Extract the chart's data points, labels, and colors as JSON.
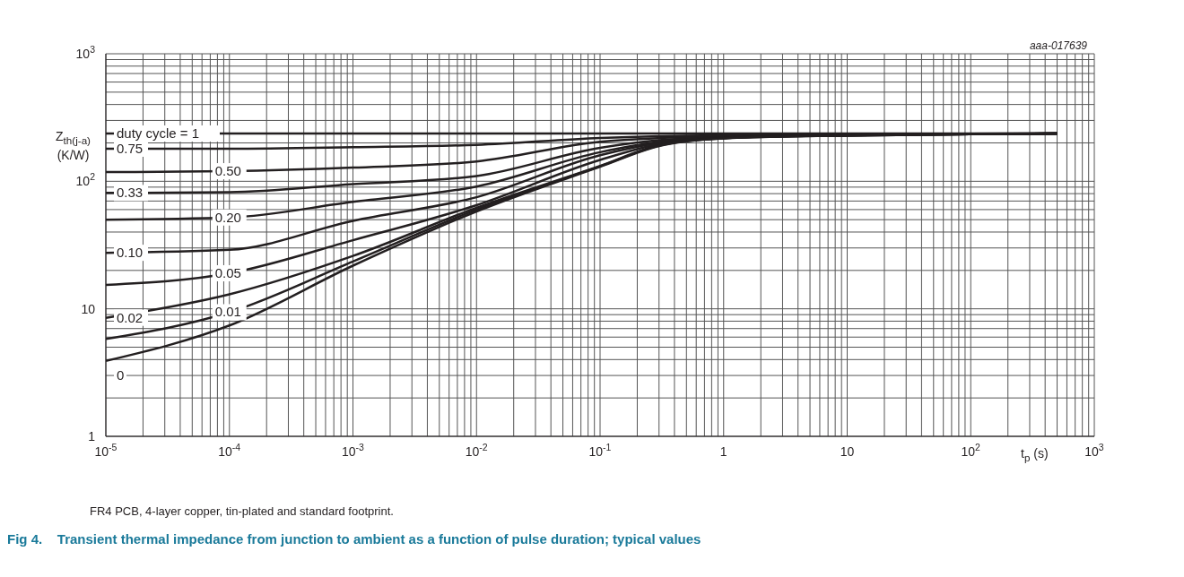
{
  "chart_data": {
    "type": "line",
    "title": "Fig 4.    Transient thermal impedance from junction to ambient as a function of pulse duration; typical values",
    "xlabel": "t$_{p}$ (s)",
    "ylabel": "Z$_{th(j-a)}$ (K/W)",
    "annotations": [
      "aaa-017639",
      "FR4 PCB, 4-layer copper, tin-plated and standard footprint."
    ],
    "log": "xy",
    "grid": true,
    "legend": false,
    "xlim": [
      1e-05,
      1000
    ],
    "ylim": [
      1,
      1000
    ],
    "xticks": [
      {
        "value": 1e-05,
        "label": "10$^{-5}$"
      },
      {
        "value": 2e-05,
        "label": null
      },
      {
        "value": 3e-05,
        "label": null
      },
      {
        "value": 4e-05,
        "label": null
      },
      {
        "value": 5e-05,
        "label": null
      },
      {
        "value": 6e-05,
        "label": null
      },
      {
        "value": 7e-05,
        "label": null
      },
      {
        "value": 8e-05,
        "label": null
      },
      {
        "value": 9e-05,
        "label": null
      },
      {
        "value": 0.0001,
        "label": "10$^{-4}$"
      },
      {
        "value": 0.0002,
        "label": null
      },
      {
        "value": 0.0003,
        "label": null
      },
      {
        "value": 0.0004,
        "label": null
      },
      {
        "value": 0.0005,
        "label": null
      },
      {
        "value": 0.0006,
        "label": null
      },
      {
        "value": 0.0007,
        "label": null
      },
      {
        "value": 0.0008,
        "label": null
      },
      {
        "value": 0.0009,
        "label": null
      },
      {
        "value": 0.001,
        "label": "10$^{-3}$"
      },
      {
        "value": 0.002,
        "label": null
      },
      {
        "value": 0.003,
        "label": null
      },
      {
        "value": 0.004,
        "label": null
      },
      {
        "value": 0.005,
        "label": null
      },
      {
        "value": 0.006,
        "label": null
      },
      {
        "value": 0.007,
        "label": null
      },
      {
        "value": 0.008,
        "label": null
      },
      {
        "value": 0.009,
        "label": null
      },
      {
        "value": 0.01,
        "label": "10$^{-2}$"
      },
      {
        "value": 0.02,
        "label": null
      },
      {
        "value": 0.03,
        "label": null
      },
      {
        "value": 0.04,
        "label": null
      },
      {
        "value": 0.05,
        "label": null
      },
      {
        "value": 0.06,
        "label": null
      },
      {
        "value": 0.07,
        "label": null
      },
      {
        "value": 0.08,
        "label": null
      },
      {
        "value": 0.09,
        "label": null
      },
      {
        "value": 0.1,
        "label": "10$^{-1}$"
      },
      {
        "value": 0.2,
        "label": null
      },
      {
        "value": 0.3,
        "label": null
      },
      {
        "value": 0.4,
        "label": null
      },
      {
        "value": 0.5,
        "label": null
      },
      {
        "value": 0.6,
        "label": null
      },
      {
        "value": 0.7,
        "label": null
      },
      {
        "value": 0.8,
        "label": null
      },
      {
        "value": 0.9,
        "label": null
      },
      1,
      {
        "value": 2,
        "label": null
      },
      {
        "value": 3,
        "label": null
      },
      {
        "value": 4,
        "label": null
      },
      {
        "value": 5,
        "label": null
      },
      {
        "value": 6,
        "label": null
      },
      {
        "value": 7,
        "label": null
      },
      {
        "value": 8,
        "label": null
      },
      {
        "value": 9,
        "label": null
      },
      10,
      {
        "value": 20,
        "label": null
      },
      {
        "value": 30,
        "label": null
      },
      {
        "value": 40,
        "label": null
      },
      {
        "value": 50,
        "label": null
      },
      {
        "value": 60,
        "label": null
      },
      {
        "value": 70,
        "label": null
      },
      {
        "value": 80,
        "label": null
      },
      {
        "value": 90,
        "label": null
      },
      {
        "value": 100,
        "label": "10$^{2}$"
      },
      {
        "value": 200,
        "label": null
      },
      {
        "value": 300,
        "label": null
      },
      {
        "value": 400,
        "label": null
      },
      {
        "value": 500,
        "label": null
      },
      {
        "value": 600,
        "label": null
      },
      {
        "value": 700,
        "label": null
      },
      {
        "value": 800,
        "label": null
      },
      {
        "value": 900,
        "label": null
      },
      {
        "value": 1000,
        "label": "10$^{3}$"
      }
    ],
    "yticks": [
      1,
      {
        "value": 2,
        "label": null
      },
      {
        "value": 3,
        "label": null
      },
      {
        "value": 4,
        "label": null
      },
      {
        "value": 5,
        "label": null
      },
      {
        "value": 6,
        "label": null
      },
      {
        "value": 7,
        "label": null
      },
      {
        "value": 8,
        "label": null
      },
      {
        "value": 9,
        "label": null
      },
      10,
      {
        "value": 20,
        "label": null
      },
      {
        "value": 30,
        "label": null
      },
      {
        "value": 40,
        "label": null
      },
      {
        "value": 50,
        "label": null
      },
      {
        "value": 60,
        "label": null
      },
      {
        "value": 70,
        "label": null
      },
      {
        "value": 80,
        "label": null
      },
      {
        "value": 90,
        "label": null
      },
      {
        "value": 100,
        "label": "10$^{2}$"
      },
      {
        "value": 200,
        "label": null
      },
      {
        "value": 300,
        "label": null
      },
      {
        "value": 400,
        "label": null
      },
      {
        "value": 500,
        "label": null
      },
      {
        "value": 600,
        "label": null
      },
      {
        "value": 700,
        "label": null
      },
      {
        "value": 800,
        "label": null
      },
      {
        "value": 900,
        "label": null
      },
      {
        "value": 1000,
        "label": "10$^{3}$"
      }
    ],
    "x": [
      1e-05,
      0.0001,
      0.001,
      0.01,
      0.1,
      0.3,
      1,
      10,
      100,
      500
    ],
    "series": [
      {
        "name": "duty cycle = 1",
        "color": "#231f20",
        "values": [
          237,
          237,
          237,
          237,
          237,
          237,
          237,
          237,
          237,
          237
        ]
      },
      {
        "name": "0.75",
        "color": "#231f20",
        "values": [
          180,
          180,
          185,
          193,
          219,
          226,
          230,
          233,
          236,
          237
        ]
      },
      {
        "name": "0.50",
        "color": "#231f20",
        "values": [
          118,
          120,
          128,
          143,
          204,
          218,
          226,
          232,
          235,
          237
        ]
      },
      {
        "name": "0.33",
        "color": "#231f20",
        "values": [
          81,
          82,
          95,
          110,
          183,
          210,
          223,
          231,
          235,
          237
        ]
      },
      {
        "name": "0.20",
        "color": "#231f20",
        "values": [
          50,
          52,
          69,
          91,
          169,
          204,
          221,
          230,
          234,
          237
        ]
      },
      {
        "name": "0.10",
        "color": "#231f20",
        "values": [
          27.5,
          29,
          49,
          75,
          160,
          200,
          220,
          230,
          234,
          237
        ]
      },
      {
        "name": "0.05",
        "color": "#231f20",
        "values": [
          15.4,
          19,
          34.5,
          65,
          147,
          196,
          219,
          229,
          234,
          237
        ]
      },
      {
        "name": "0.02",
        "color": "#231f20",
        "values": [
          8.5,
          13,
          26,
          62,
          132,
          192,
          218,
          229,
          234,
          237
        ]
      },
      {
        "name": "0.01",
        "color": "#231f20",
        "values": [
          5.8,
          9.4,
          23.5,
          60,
          131,
          190,
          218,
          228,
          234,
          237
        ]
      },
      {
        "name": "0",
        "color": "#231f20",
        "values": [
          3.9,
          7.4,
          21.8,
          58,
          130,
          189,
          217,
          228,
          234,
          237
        ]
      }
    ]
  }
}
